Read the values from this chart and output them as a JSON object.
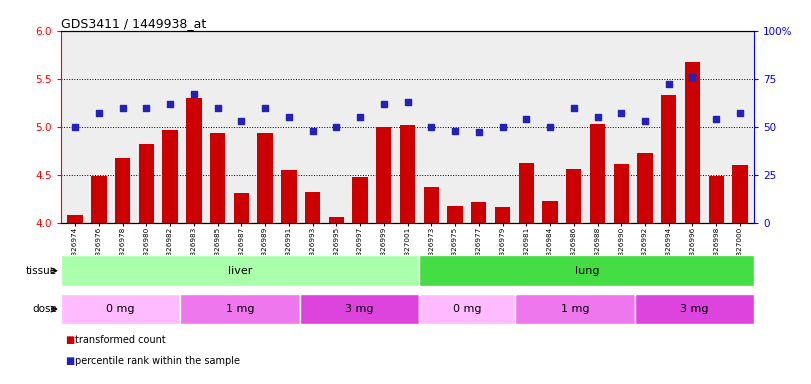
{
  "title": "GDS3411 / 1449938_at",
  "samples": [
    "GSM326974",
    "GSM326976",
    "GSM326978",
    "GSM326980",
    "GSM326982",
    "GSM326983",
    "GSM326985",
    "GSM326987",
    "GSM326989",
    "GSM326991",
    "GSM326993",
    "GSM326995",
    "GSM326997",
    "GSM326999",
    "GSM327001",
    "GSM326973",
    "GSM326975",
    "GSM326977",
    "GSM326979",
    "GSM326981",
    "GSM326984",
    "GSM326986",
    "GSM326988",
    "GSM326990",
    "GSM326992",
    "GSM326994",
    "GSM326996",
    "GSM326998",
    "GSM327000"
  ],
  "red_values": [
    4.08,
    4.49,
    4.67,
    4.82,
    4.97,
    5.3,
    4.93,
    4.31,
    4.93,
    4.55,
    4.32,
    4.06,
    4.48,
    5.0,
    5.02,
    4.37,
    4.17,
    4.22,
    4.16,
    4.62,
    4.23,
    4.56,
    5.03,
    4.61,
    4.73,
    5.33,
    5.67,
    4.49,
    4.6
  ],
  "blue_values": [
    50,
    57,
    60,
    60,
    62,
    67,
    60,
    53,
    60,
    55,
    48,
    50,
    55,
    62,
    63,
    50,
    48,
    47,
    50,
    54,
    50,
    60,
    55,
    57,
    53,
    72,
    76,
    54,
    57
  ],
  "ylim_left": [
    4.0,
    6.0
  ],
  "ylim_right": [
    0,
    100
  ],
  "yticks_left": [
    4.0,
    4.5,
    5.0,
    5.5,
    6.0
  ],
  "yticks_right": [
    0,
    25,
    50,
    75,
    100
  ],
  "ytick_right_labels": [
    "0",
    "25",
    "50",
    "75",
    "100%"
  ],
  "hlines": [
    4.5,
    5.0,
    5.5
  ],
  "bar_color": "#CC0000",
  "dot_color": "#2222BB",
  "tissue_groups": [
    {
      "label": "liver",
      "start": 0,
      "end": 15,
      "color": "#AAFFAA"
    },
    {
      "label": "lung",
      "start": 15,
      "end": 29,
      "color": "#44DD44"
    }
  ],
  "dose_groups": [
    {
      "label": "0 mg",
      "start": 0,
      "end": 5,
      "color": "#FFBBFF"
    },
    {
      "label": "1 mg",
      "start": 5,
      "end": 10,
      "color": "#EE77EE"
    },
    {
      "label": "3 mg",
      "start": 10,
      "end": 15,
      "color": "#DD44DD"
    },
    {
      "label": "0 mg",
      "start": 15,
      "end": 19,
      "color": "#FFBBFF"
    },
    {
      "label": "1 mg",
      "start": 19,
      "end": 24,
      "color": "#EE77EE"
    },
    {
      "label": "3 mg",
      "start": 24,
      "end": 29,
      "color": "#DD44DD"
    }
  ],
  "legend_items": [
    {
      "label": "transformed count",
      "color": "#CC0000"
    },
    {
      "label": "percentile rank within the sample",
      "color": "#2222BB"
    }
  ],
  "bar_baseline": 4.0,
  "facecolor": "#EEEEEE"
}
